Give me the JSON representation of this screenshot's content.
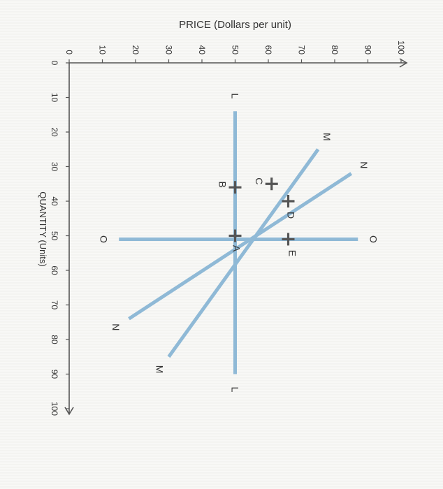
{
  "chart_data": {
    "type": "line",
    "title": "",
    "ylabel": "PRICE (Dollars per unit)",
    "xlabel": "QUANTITY (Units)",
    "xlim": [
      0,
      100
    ],
    "ylim": [
      0,
      100
    ],
    "x_ticks": [
      0,
      10,
      20,
      30,
      40,
      50,
      60,
      70,
      80,
      90,
      100
    ],
    "y_ticks": [
      0,
      10,
      20,
      30,
      40,
      50,
      60,
      70,
      80,
      90,
      100
    ],
    "grid": false,
    "series": [
      {
        "name": "L",
        "label_start": "L",
        "label_end": "L",
        "points": [
          [
            14,
            50
          ],
          [
            90,
            50
          ]
        ]
      },
      {
        "name": "M",
        "label_start": "M",
        "label_end": "M",
        "points": [
          [
            25,
            75
          ],
          [
            85,
            30
          ]
        ]
      },
      {
        "name": "N",
        "label_start": "N",
        "label_end": "N",
        "points": [
          [
            32,
            85
          ],
          [
            74,
            18
          ]
        ]
      },
      {
        "name": "O",
        "label_start": "O",
        "label_end": "O",
        "points": [
          [
            51,
            15
          ],
          [
            51,
            87
          ]
        ]
      }
    ],
    "points": [
      {
        "label": "A",
        "x": 50,
        "y": 50
      },
      {
        "label": "B",
        "x": 36,
        "y": 50
      },
      {
        "label": "C",
        "x": 35,
        "y": 61
      },
      {
        "label": "D",
        "x": 40,
        "y": 66
      },
      {
        "label": "E",
        "x": 51,
        "y": 66
      }
    ]
  },
  "colors": {
    "curve": "#8fb9d6",
    "axis": "#555555",
    "marker": "#555555",
    "text": "#333333"
  }
}
